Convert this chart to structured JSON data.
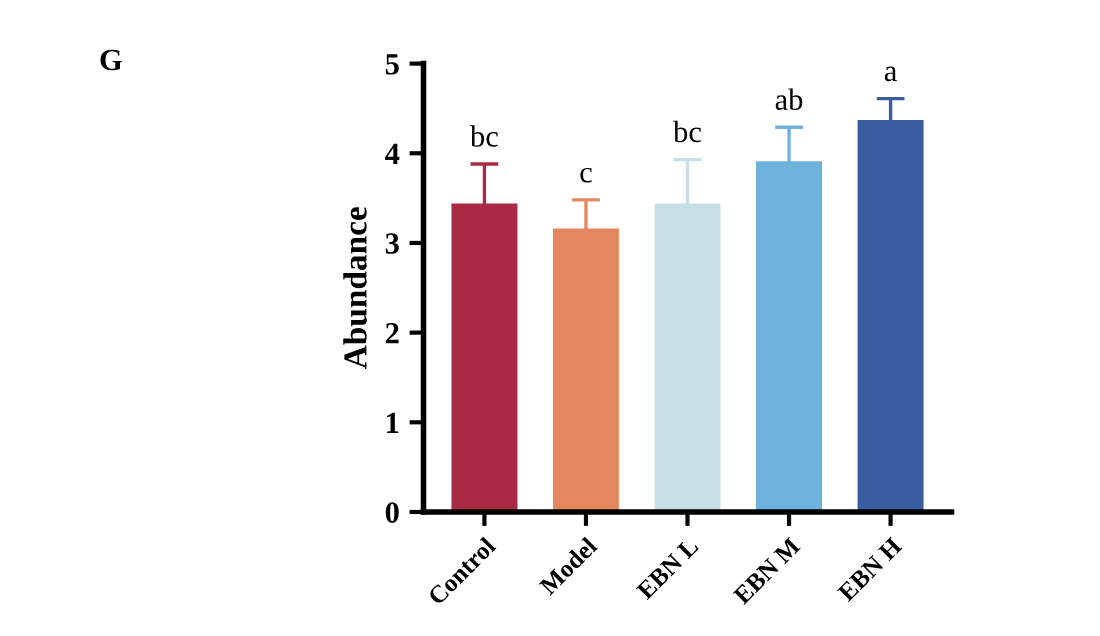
{
  "chart_data": {
    "type": "bar",
    "ylabel": "Abundance",
    "categories": [
      "Control",
      "Model",
      "EBN L",
      "EBN M",
      "EBN H"
    ],
    "values": [
      3.44,
      3.16,
      3.44,
      3.91,
      4.37
    ],
    "colors": [
      "#a82a44",
      "#e5875e",
      "#c9dfe6",
      "#6cb2dc",
      "#3a5ca0"
    ],
    "errors": [
      0.44,
      0.32,
      0.49,
      0.38,
      0.24
    ],
    "ylim": [
      0,
      5
    ],
    "yticks": [
      0,
      1,
      2,
      3,
      4,
      5
    ],
    "grid": false,
    "annotations": [
      "G",
      "bc",
      "c",
      "bc",
      "ab",
      "a"
    ]
  }
}
